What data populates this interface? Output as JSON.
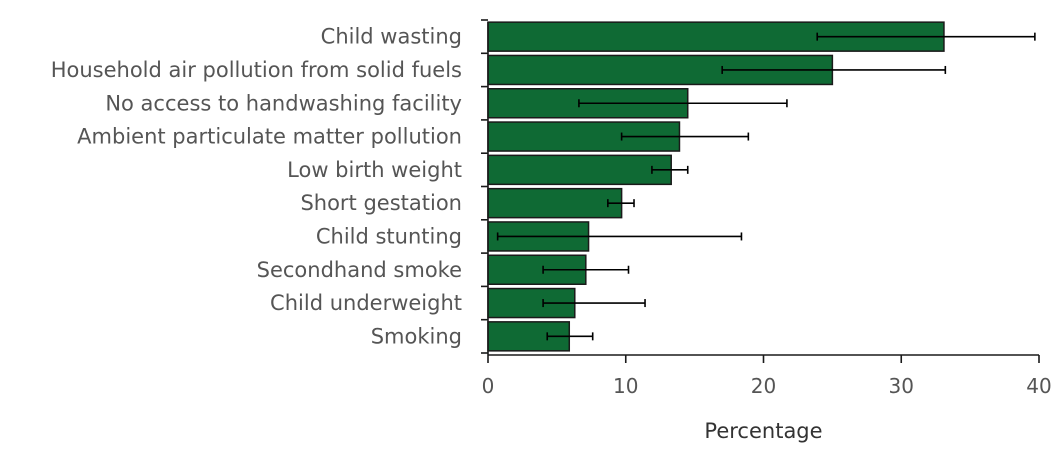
{
  "chart_data": {
    "type": "bar",
    "orientation": "horizontal",
    "categories": [
      "Child wasting",
      "Household air pollution from solid fuels",
      "No access to handwashing facility",
      "Ambient particulate matter pollution",
      "Low birth weight",
      "Short gestation",
      "Child stunting",
      "Secondhand smoke",
      "Child underweight",
      "Smoking"
    ],
    "values": [
      33.1,
      25.0,
      14.5,
      13.9,
      13.3,
      9.7,
      7.3,
      7.1,
      6.3,
      5.9
    ],
    "error_low": [
      23.9,
      17.0,
      6.6,
      9.7,
      11.9,
      8.7,
      0.7,
      4.0,
      4.0,
      4.3
    ],
    "error_high": [
      39.7,
      33.2,
      21.7,
      18.9,
      14.5,
      10.6,
      18.4,
      10.2,
      11.4,
      7.6
    ],
    "xlabel": "Percentage",
    "ylabel": "",
    "xlim": [
      0,
      40
    ],
    "xticks": [
      "0",
      "10",
      "20",
      "30",
      "40"
    ],
    "bar_color": "#0f6a34",
    "grid": false
  }
}
